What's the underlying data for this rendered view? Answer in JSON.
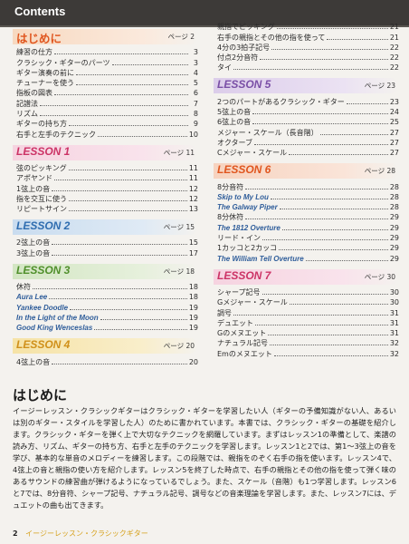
{
  "header": {
    "title": "Contents"
  },
  "left_sections": [
    {
      "title": "はじめに",
      "style": "orange hajime",
      "page": "ページ 2",
      "items": [
        {
          "label": "練習の仕方",
          "page": "3"
        },
        {
          "label": "クラシック・ギターのパーツ",
          "page": "3"
        },
        {
          "label": "ギター演奏の前に",
          "page": "4"
        },
        {
          "label": "チューナーを使う",
          "page": "5"
        },
        {
          "label": "指板の図表",
          "page": "6"
        },
        {
          "label": "記譜法",
          "page": "7"
        },
        {
          "label": "リズム",
          "page": "8"
        },
        {
          "label": "ギターの持ち方",
          "page": "9"
        },
        {
          "label": "右手と左手のテクニック",
          "page": "10"
        }
      ]
    },
    {
      "title": "LESSON 1",
      "style": "pink",
      "page": "ページ 11",
      "items": [
        {
          "label": "弦のピッキング",
          "page": "11"
        },
        {
          "label": "アポヤンド",
          "page": "11"
        },
        {
          "label": "1弦上の音",
          "page": "12"
        },
        {
          "label": "指を交互に使う",
          "page": "12"
        },
        {
          "label": "リピートサイン",
          "page": "13"
        }
      ]
    },
    {
      "title": "LESSON 2",
      "style": "blue",
      "page": "ページ 15",
      "items": [
        {
          "label": "2弦上の音",
          "page": "15"
        },
        {
          "label": "3弦上の音",
          "page": "17"
        }
      ]
    },
    {
      "title": "LESSON 3",
      "style": "green",
      "page": "ページ 18",
      "items": [
        {
          "label": "休符",
          "page": "18"
        },
        {
          "label": "Aura Lee",
          "page": "18",
          "song": true
        },
        {
          "label": "Yankee Doodle",
          "page": "19",
          "song": true
        },
        {
          "label": "In the Light of the Moon",
          "page": "19",
          "song": true
        },
        {
          "label": "Good King Wenceslas",
          "page": "19",
          "song": true
        }
      ]
    },
    {
      "title": "LESSON 4",
      "style": "yellow",
      "page": "ページ 20",
      "items": [
        {
          "label": "4弦上の音",
          "page": "20"
        }
      ]
    }
  ],
  "right_top_items": [
    {
      "label": "親指でピッキング",
      "page": "21"
    },
    {
      "label": "右手の親指とその他の指を使って",
      "page": "21"
    },
    {
      "label": "4分の3拍子記号",
      "page": "22"
    },
    {
      "label": "付点2分音符",
      "page": "22"
    },
    {
      "label": "タイ",
      "page": "22"
    }
  ],
  "right_sections": [
    {
      "title": "LESSON 5",
      "style": "purple",
      "page": "ページ 23",
      "items": [
        {
          "label": "2つのパートがあるクラシック・ギター",
          "page": "23"
        },
        {
          "label": "5弦上の音",
          "page": "24"
        },
        {
          "label": "6弦上の音",
          "page": "25"
        },
        {
          "label": "メジャー・スケール（長音階）",
          "page": "27"
        },
        {
          "label": "オクターブ",
          "page": "27"
        },
        {
          "label": "Cメジャー・スケール",
          "page": "27"
        }
      ]
    },
    {
      "title": "LESSON 6",
      "style": "orange2",
      "page": "ページ 28",
      "items": [
        {
          "label": "8分音符",
          "page": "28"
        },
        {
          "label": "Skip to My Lou",
          "page": "28",
          "song": true
        },
        {
          "label": "The Galway Piper",
          "page": "28",
          "song": true
        },
        {
          "label": "8分休符",
          "page": "29"
        },
        {
          "label": "The 1812 Overture",
          "page": "29",
          "song": true
        },
        {
          "label": "リード・イン",
          "page": "29"
        },
        {
          "label": "1カッコと2カッコ",
          "page": "29"
        },
        {
          "label": "The William Tell Overture",
          "page": "29",
          "song": true
        }
      ]
    },
    {
      "title": "LESSON 7",
      "style": "pink",
      "page": "ページ 30",
      "items": [
        {
          "label": "シャープ記号",
          "page": "30"
        },
        {
          "label": "Gメジャー・スケール",
          "page": "30"
        },
        {
          "label": "調号",
          "page": "31"
        },
        {
          "label": "デュエット",
          "page": "31"
        },
        {
          "label": "Gのメヌエット",
          "page": "31"
        },
        {
          "label": "ナチュラル記号",
          "page": "32"
        },
        {
          "label": "Emのメヌエット",
          "page": "32"
        }
      ]
    }
  ],
  "intro": {
    "title": "はじめに",
    "body": "イージーレッスン・クラシックギターはクラシック・ギターを学習したい人（ギターの予備知識がない人、あるいは別のギター・スタイルを学習した人）のために書かれています。本書では、クラシック・ギターの基礎を紹介します。クラシック・ギターを弾く上で大切なテクニックを網羅しています。まずはレッスン1の準備として、楽譜の読み方、リズム、ギターの持ち方、右手と左手のテクニックを学習します。レッスン1と2では、第1〜3弦上の音を学び、基本的な単音のメロディーを練習します。この段階では、親指をのぞく右手の指を使います。レッスン4で、4弦上の音と親指の使い方を紹介します。レッスン5を終了した時点で、右手の親指とその他の指を使って弾く味のあるサウンドの練習曲が弾けるようになっているでしょう。また、スケール（音階）も1つ学習します。レッスン6と7では、8分音符、シャープ記号、ナチュラル記号、調号などの音楽理論を学習します。また、レッスン7には、デュエットの曲も出てきます。"
  },
  "footer": {
    "page_number": "2",
    "book_title": "イージーレッスン・クラシックギター"
  }
}
